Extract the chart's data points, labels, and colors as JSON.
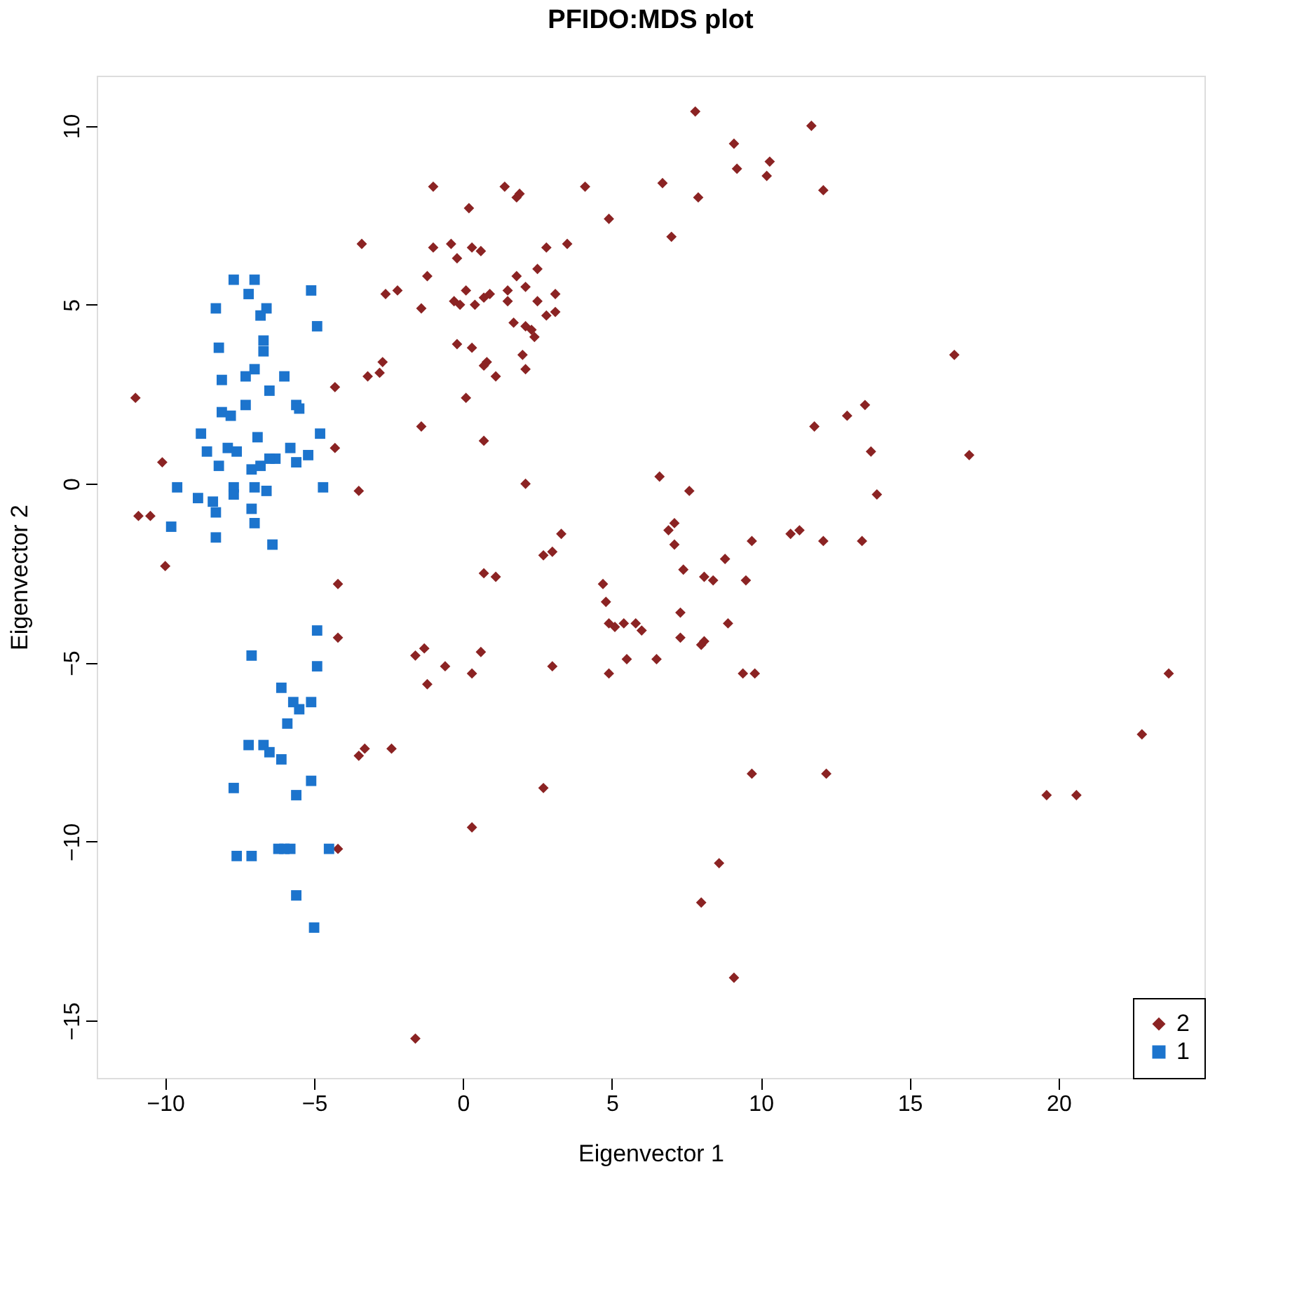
{
  "chart_data": {
    "type": "scatter",
    "title": "PFIDO:MDS plot",
    "xlabel": "Eigenvector 1",
    "ylabel": "Eigenvector 2",
    "xlim": [
      -12.3,
      24.9
    ],
    "ylim": [
      -16.6,
      11.4
    ],
    "xticks": [
      -10,
      -5,
      0,
      5,
      10,
      15,
      20
    ],
    "yticks": [
      -15,
      -10,
      -5,
      0,
      5,
      10
    ],
    "grid": false,
    "legend": "bottom right",
    "series": [
      {
        "name": "2",
        "color": "#8b2323",
        "marker": "diamond",
        "x": [
          -11.0,
          -10.1,
          -10.9,
          -10.5,
          -10.0,
          -4.3,
          -4.3,
          -4.2,
          -4.2,
          -3.4,
          -3.2,
          -2.8,
          -2.7,
          -2.6,
          -2.2,
          -1.0,
          -1.4,
          -1.2,
          -1.4,
          -1.0,
          -0.4,
          -0.2,
          -0.1,
          0.1,
          0.2,
          0.3,
          0.6,
          0.7,
          0.4,
          0.9,
          -0.3,
          -0.2,
          0.3,
          0.1,
          0.7,
          0.8,
          0.7,
          1.1,
          1.4,
          1.9,
          1.8,
          1.5,
          1.5,
          1.8,
          1.7,
          2.0,
          2.1,
          2.1,
          2.5,
          2.4,
          2.5,
          2.3,
          2.1,
          2.8,
          3.5,
          3.1,
          3.1,
          2.8,
          4.1,
          4.9,
          6.7,
          7.0,
          7.8,
          9.1,
          9.2,
          7.9,
          10.3,
          10.2,
          11.7,
          12.1,
          11.8,
          12.9,
          13.5,
          13.7,
          13.9,
          16.5,
          17.0,
          -1.6,
          -1.3,
          0.7,
          1.1,
          2.1,
          2.7,
          3.0,
          3.3,
          4.7,
          4.8,
          4.9,
          5.1,
          5.4,
          5.8,
          6.0,
          4.9,
          5.5,
          6.5,
          6.6,
          7.1,
          6.9,
          7.1,
          7.6,
          7.4,
          8.4,
          8.1,
          7.3,
          7.3,
          8.1,
          8.0,
          8.8,
          8.9,
          9.4,
          9.8,
          9.5,
          9.7,
          11.0,
          11.3,
          12.1,
          13.4,
          9.7,
          12.2,
          3.0,
          0.6,
          0.3,
          -0.6,
          -1.2,
          -2.4,
          -3.5,
          -3.3,
          -4.2,
          0.3,
          2.7,
          8.6,
          8.0,
          9.1,
          -1.6,
          19.6,
          20.6,
          22.8,
          23.7,
          -3.5
        ],
        "values": [
          2.4,
          0.6,
          -0.9,
          -0.9,
          -2.3,
          2.7,
          1.0,
          -2.8,
          -4.3,
          6.7,
          3.0,
          3.1,
          3.4,
          5.3,
          5.4,
          8.3,
          4.9,
          5.8,
          1.6,
          6.6,
          6.7,
          6.3,
          5.0,
          5.4,
          7.7,
          6.6,
          6.5,
          5.2,
          5.0,
          5.3,
          5.1,
          3.9,
          3.8,
          2.4,
          1.2,
          3.4,
          3.3,
          3.0,
          8.3,
          8.1,
          8.0,
          5.4,
          5.1,
          5.8,
          4.5,
          3.6,
          4.4,
          3.2,
          6.0,
          4.1,
          5.1,
          4.3,
          5.5,
          6.6,
          6.7,
          5.3,
          4.8,
          4.7,
          8.3,
          7.4,
          8.4,
          6.9,
          10.4,
          9.5,
          8.8,
          8.0,
          9.0,
          8.6,
          10.0,
          8.2,
          1.6,
          1.9,
          2.2,
          0.9,
          -0.3,
          3.6,
          0.8,
          -4.8,
          -4.6,
          -2.5,
          -2.6,
          0.0,
          -2.0,
          -1.9,
          -1.4,
          -2.8,
          -3.3,
          -3.9,
          -4.0,
          -3.9,
          -3.9,
          -4.1,
          -5.3,
          -4.9,
          -4.9,
          0.2,
          -1.1,
          -1.3,
          -1.7,
          -0.2,
          -2.4,
          -2.7,
          -2.6,
          -3.6,
          -4.3,
          -4.4,
          -4.5,
          -2.1,
          -3.9,
          -5.3,
          -5.3,
          -2.7,
          -1.6,
          -1.4,
          -1.3,
          -1.6,
          -1.6,
          -8.1,
          -8.1,
          -5.1,
          -4.7,
          -5.3,
          -5.1,
          -5.6,
          -7.4,
          -7.6,
          -7.4,
          -10.2,
          -9.6,
          -8.5,
          -10.6,
          -11.7,
          -13.8,
          -15.5,
          -8.7,
          -8.7,
          -7.0,
          -5.3,
          -0.2
        ]
      },
      {
        "name": "1",
        "color": "#1c74cd",
        "marker": "square",
        "x": [
          -7.7,
          -7.0,
          -7.2,
          -5.1,
          -8.3,
          -6.6,
          -6.8,
          -4.9,
          -8.2,
          -6.7,
          -6.7,
          -8.1,
          -7.0,
          -7.3,
          -6.0,
          -6.5,
          -8.1,
          -7.8,
          -7.3,
          -5.6,
          -5.5,
          -8.8,
          -6.9,
          -4.8,
          -8.6,
          -7.9,
          -7.6,
          -8.2,
          -7.1,
          -6.8,
          -6.3,
          -6.5,
          -5.8,
          -5.6,
          -5.2,
          -9.6,
          -8.9,
          -8.4,
          -8.3,
          -7.7,
          -7.7,
          -7.0,
          -6.6,
          -7.1,
          -7.0,
          -4.7,
          -9.8,
          -8.3,
          -6.4,
          -7.1,
          -6.1,
          -4.9,
          -4.9,
          -5.7,
          -5.1,
          -5.5,
          -5.9,
          -6.7,
          -6.5,
          -6.1,
          -7.2,
          -7.7,
          -5.1,
          -5.6,
          -7.6,
          -7.1,
          -6.2,
          -6.0,
          -5.8,
          -4.5,
          -5.6,
          -5.0
        ],
        "values": [
          5.7,
          5.7,
          5.3,
          5.4,
          4.9,
          4.9,
          4.7,
          4.4,
          3.8,
          4.0,
          3.7,
          2.9,
          3.2,
          3.0,
          3.0,
          2.6,
          2.0,
          1.9,
          2.2,
          2.2,
          2.1,
          1.4,
          1.3,
          1.4,
          0.9,
          1.0,
          0.9,
          0.5,
          0.4,
          0.5,
          0.7,
          0.7,
          1.0,
          0.6,
          0.8,
          -0.1,
          -0.4,
          -0.5,
          -0.8,
          -0.1,
          -0.3,
          -0.1,
          -0.2,
          -0.7,
          -1.1,
          -0.1,
          -1.2,
          -1.5,
          -1.7,
          -4.8,
          -5.7,
          -5.1,
          -4.1,
          -6.1,
          -6.1,
          -6.3,
          -6.7,
          -7.3,
          -7.5,
          -7.7,
          -7.3,
          -8.5,
          -8.3,
          -8.7,
          -10.4,
          -10.4,
          -10.2,
          -10.2,
          -10.2,
          -10.2,
          -11.5,
          -12.4
        ]
      }
    ]
  }
}
